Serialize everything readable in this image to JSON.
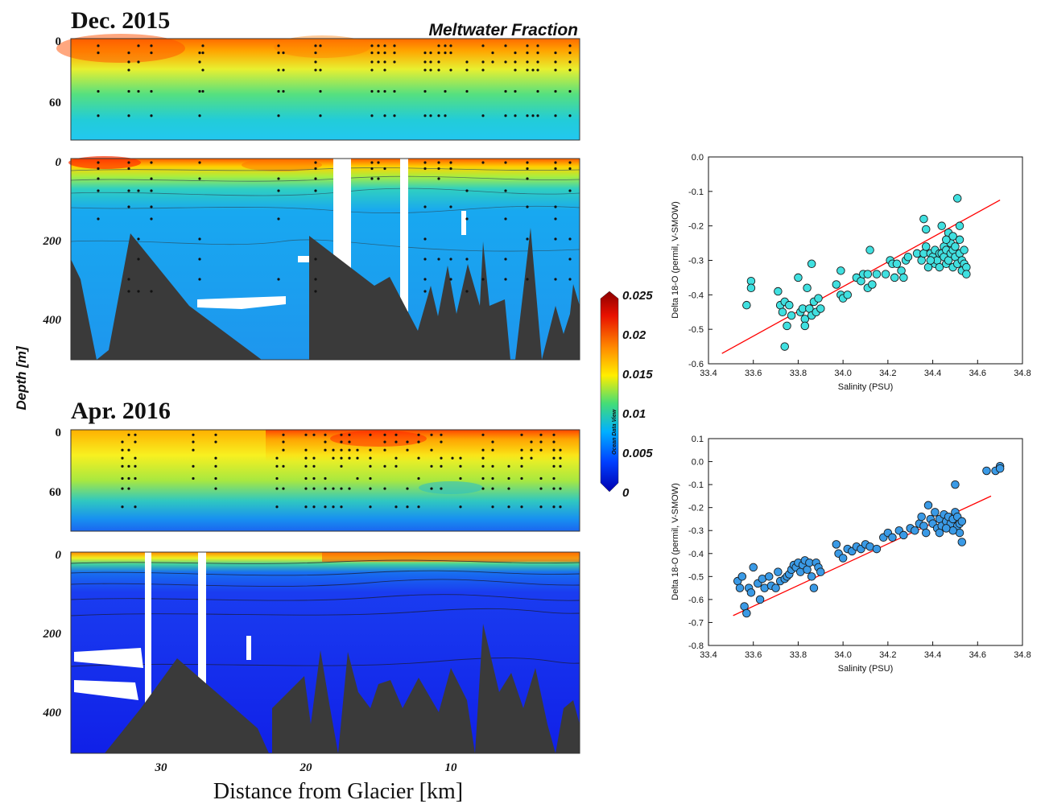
{
  "chart_data": [
    {
      "type": "heatmap",
      "title": "Dec. 2015",
      "panel": "upper (0-100 m)",
      "variable": "Meltwater Fraction",
      "xlabel": "Distance from Glacier [km]",
      "ylabel": "Depth [m]",
      "x_ticks": [
        30,
        20,
        10
      ],
      "y_ticks": [
        0,
        60
      ],
      "xlim": [
        36,
        1
      ],
      "ylim": [
        100,
        0
      ]
    },
    {
      "type": "heatmap",
      "title": "Dec. 2015",
      "panel": "full depth (0-500 m)",
      "variable": "Meltwater Fraction",
      "y_ticks": [
        0,
        200,
        400
      ],
      "xlim": [
        36,
        1
      ],
      "ylim": [
        500,
        0
      ]
    },
    {
      "type": "heatmap",
      "title": "Apr. 2016",
      "panel": "upper (0-100 m)",
      "variable": "Meltwater Fraction",
      "y_ticks": [
        0,
        60
      ],
      "xlim": [
        36,
        1
      ],
      "ylim": [
        100,
        0
      ]
    },
    {
      "type": "heatmap",
      "title": "Apr. 2016",
      "panel": "full depth (0-500 m)",
      "variable": "Meltwater Fraction",
      "x_ticks": [
        30,
        20,
        10
      ],
      "y_ticks": [
        0,
        200,
        400
      ],
      "xlim": [
        36,
        1
      ],
      "ylim": [
        500,
        0
      ]
    },
    {
      "type": "colorbar",
      "label": "Ocean Data View",
      "ticks": [
        "0.025",
        "0.02",
        "0.015",
        "0.01",
        "0.005",
        "0"
      ],
      "colors": [
        "#8b0000",
        "#ff2a00",
        "#ff9900",
        "#ffff00",
        "#33dd88",
        "#00aaff",
        "#0033ff",
        "#0000aa"
      ]
    },
    {
      "type": "scatter",
      "xlabel": "Salinity (PSU)",
      "ylabel": "Delta 18-O (permil, V-SMOW)",
      "xlim": [
        33.4,
        34.8
      ],
      "ylim": [
        -0.6,
        0.0
      ],
      "x_ticks": [
        "33.4",
        "33.6",
        "33.8",
        "34.0",
        "34.2",
        "34.4",
        "34.6",
        "34.8"
      ],
      "y_ticks": [
        "0.0",
        "-0.1",
        "-0.2",
        "-0.3",
        "-0.4",
        "-0.5",
        "-0.6"
      ],
      "grid": false,
      "marker_color": "#40e0e0",
      "fit_line": {
        "x": [
          33.46,
          34.7
        ],
        "y": [
          -0.57,
          -0.125
        ],
        "color": "#ff0000"
      },
      "points": [
        [
          33.57,
          -0.43
        ],
        [
          33.59,
          -0.36
        ],
        [
          33.59,
          -0.38
        ],
        [
          33.71,
          -0.39
        ],
        [
          33.72,
          -0.43
        ],
        [
          33.73,
          -0.45
        ],
        [
          33.74,
          -0.55
        ],
        [
          33.74,
          -0.42
        ],
        [
          33.75,
          -0.49
        ],
        [
          33.76,
          -0.43
        ],
        [
          33.77,
          -0.46
        ],
        [
          33.8,
          -0.35
        ],
        [
          33.81,
          -0.45
        ],
        [
          33.82,
          -0.44
        ],
        [
          33.83,
          -0.47
        ],
        [
          33.83,
          -0.49
        ],
        [
          33.84,
          -0.38
        ],
        [
          33.85,
          -0.44
        ],
        [
          33.86,
          -0.46
        ],
        [
          33.86,
          -0.31
        ],
        [
          33.87,
          -0.42
        ],
        [
          33.88,
          -0.45
        ],
        [
          33.89,
          -0.41
        ],
        [
          33.9,
          -0.44
        ],
        [
          33.97,
          -0.37
        ],
        [
          33.99,
          -0.33
        ],
        [
          33.99,
          -0.4
        ],
        [
          34.0,
          -0.41
        ],
        [
          34.02,
          -0.4
        ],
        [
          34.06,
          -0.35
        ],
        [
          34.08,
          -0.36
        ],
        [
          34.09,
          -0.34
        ],
        [
          34.11,
          -0.34
        ],
        [
          34.11,
          -0.38
        ],
        [
          34.12,
          -0.27
        ],
        [
          34.13,
          -0.37
        ],
        [
          34.15,
          -0.34
        ],
        [
          34.19,
          -0.34
        ],
        [
          34.21,
          -0.3
        ],
        [
          34.22,
          -0.31
        ],
        [
          34.23,
          -0.35
        ],
        [
          34.24,
          -0.31
        ],
        [
          34.26,
          -0.33
        ],
        [
          34.27,
          -0.35
        ],
        [
          34.28,
          -0.3
        ],
        [
          34.29,
          -0.29
        ],
        [
          34.33,
          -0.28
        ],
        [
          34.35,
          -0.3
        ],
        [
          34.36,
          -0.28
        ],
        [
          34.36,
          -0.18
        ],
        [
          34.37,
          -0.21
        ],
        [
          34.37,
          -0.26
        ],
        [
          34.38,
          -0.32
        ],
        [
          34.39,
          -0.28
        ],
        [
          34.4,
          -0.29
        ],
        [
          34.41,
          -0.31
        ],
        [
          34.41,
          -0.27
        ],
        [
          34.42,
          -0.3
        ],
        [
          34.43,
          -0.28
        ],
        [
          34.43,
          -0.32
        ],
        [
          34.44,
          -0.28
        ],
        [
          34.44,
          -0.2
        ],
        [
          34.45,
          -0.26
        ],
        [
          34.45,
          -0.29
        ],
        [
          34.46,
          -0.31
        ],
        [
          34.46,
          -0.27
        ],
        [
          34.47,
          -0.22
        ],
        [
          34.47,
          -0.3
        ],
        [
          34.48,
          -0.28
        ],
        [
          34.48,
          -0.25
        ],
        [
          34.49,
          -0.32
        ],
        [
          34.49,
          -0.27
        ],
        [
          34.5,
          -0.29
        ],
        [
          34.5,
          -0.26
        ],
        [
          34.51,
          -0.12
        ],
        [
          34.51,
          -0.31
        ],
        [
          34.52,
          -0.28
        ],
        [
          34.52,
          -0.24
        ],
        [
          34.53,
          -0.3
        ],
        [
          34.53,
          -0.33
        ],
        [
          34.54,
          -0.27
        ],
        [
          34.54,
          -0.31
        ],
        [
          34.55,
          -0.32
        ],
        [
          34.55,
          -0.34
        ],
        [
          34.52,
          -0.2
        ],
        [
          34.49,
          -0.23
        ],
        [
          34.46,
          -0.24
        ],
        [
          34.39,
          -0.3
        ]
      ]
    },
    {
      "type": "scatter",
      "xlabel": "Salinity (PSU)",
      "ylabel": "Delta 18-O (permil, V-SMOW)",
      "xlim": [
        33.4,
        34.8
      ],
      "ylim": [
        -0.8,
        0.1
      ],
      "x_ticks": [
        "33.4",
        "33.6",
        "33.8",
        "34.0",
        "34.2",
        "34.4",
        "34.6",
        "34.8"
      ],
      "y_ticks": [
        "0.1",
        "0.0",
        "-0.1",
        "-0.2",
        "-0.3",
        "-0.4",
        "-0.5",
        "-0.6",
        "-0.7",
        "-0.8"
      ],
      "grid": false,
      "marker_color": "#3a9ae6",
      "fit_line": {
        "x": [
          33.51,
          34.66
        ],
        "y": [
          -0.67,
          -0.15
        ],
        "color": "#ff0000"
      },
      "points": [
        [
          33.53,
          -0.52
        ],
        [
          33.54,
          -0.55
        ],
        [
          33.55,
          -0.5
        ],
        [
          33.56,
          -0.63
        ],
        [
          33.57,
          -0.66
        ],
        [
          33.58,
          -0.55
        ],
        [
          33.59,
          -0.57
        ],
        [
          33.6,
          -0.46
        ],
        [
          33.62,
          -0.53
        ],
        [
          33.63,
          -0.6
        ],
        [
          33.64,
          -0.51
        ],
        [
          33.65,
          -0.55
        ],
        [
          33.67,
          -0.5
        ],
        [
          33.68,
          -0.54
        ],
        [
          33.7,
          -0.55
        ],
        [
          33.71,
          -0.48
        ],
        [
          33.72,
          -0.52
        ],
        [
          33.74,
          -0.51
        ],
        [
          33.75,
          -0.5
        ],
        [
          33.76,
          -0.49
        ],
        [
          33.77,
          -0.47
        ],
        [
          33.78,
          -0.45
        ],
        [
          33.79,
          -0.46
        ],
        [
          33.8,
          -0.44
        ],
        [
          33.81,
          -0.48
        ],
        [
          33.82,
          -0.45
        ],
        [
          33.83,
          -0.43
        ],
        [
          33.84,
          -0.47
        ],
        [
          33.85,
          -0.44
        ],
        [
          33.86,
          -0.5
        ],
        [
          33.87,
          -0.55
        ],
        [
          33.88,
          -0.44
        ],
        [
          33.89,
          -0.46
        ],
        [
          33.9,
          -0.48
        ],
        [
          33.97,
          -0.36
        ],
        [
          33.98,
          -0.4
        ],
        [
          34.0,
          -0.42
        ],
        [
          34.02,
          -0.38
        ],
        [
          34.04,
          -0.39
        ],
        [
          34.06,
          -0.37
        ],
        [
          34.08,
          -0.38
        ],
        [
          34.1,
          -0.36
        ],
        [
          34.12,
          -0.37
        ],
        [
          34.15,
          -0.38
        ],
        [
          34.18,
          -0.33
        ],
        [
          34.2,
          -0.31
        ],
        [
          34.22,
          -0.33
        ],
        [
          34.25,
          -0.3
        ],
        [
          34.27,
          -0.32
        ],
        [
          34.3,
          -0.29
        ],
        [
          34.32,
          -0.3
        ],
        [
          34.34,
          -0.27
        ],
        [
          34.36,
          -0.28
        ],
        [
          34.38,
          -0.19
        ],
        [
          34.39,
          -0.25
        ],
        [
          34.4,
          -0.27
        ],
        [
          34.41,
          -0.22
        ],
        [
          34.42,
          -0.29
        ],
        [
          34.43,
          -0.25
        ],
        [
          34.44,
          -0.28
        ],
        [
          34.45,
          -0.23
        ],
        [
          34.46,
          -0.26
        ],
        [
          34.47,
          -0.24
        ],
        [
          34.48,
          -0.27
        ],
        [
          34.49,
          -0.25
        ],
        [
          34.5,
          -0.22
        ],
        [
          34.5,
          -0.1
        ],
        [
          34.51,
          -0.28
        ],
        [
          34.51,
          -0.24
        ],
        [
          34.52,
          -0.27
        ],
        [
          34.52,
          -0.31
        ],
        [
          34.53,
          -0.35
        ],
        [
          34.53,
          -0.26
        ],
        [
          34.49,
          -0.3
        ],
        [
          34.46,
          -0.29
        ],
        [
          34.43,
          -0.31
        ],
        [
          34.37,
          -0.31
        ],
        [
          34.35,
          -0.24
        ],
        [
          34.64,
          -0.04
        ],
        [
          34.68,
          -0.04
        ],
        [
          34.7,
          -0.02
        ],
        [
          34.7,
          -0.03
        ]
      ]
    }
  ],
  "labels": {
    "dec_title": "Dec. 2015",
    "apr_title": "Apr. 2016",
    "meltwater": "Meltwater Fraction",
    "depth_axis": "Depth [m]",
    "distance_axis": "Distance from Glacier [km]",
    "odv": "Ocean Data View"
  },
  "colors": {
    "bathymetry": "#3a3a3a",
    "station_dots": "#111111",
    "fit_line": "#ff0000",
    "contour_lines": "#2a4a5a"
  }
}
